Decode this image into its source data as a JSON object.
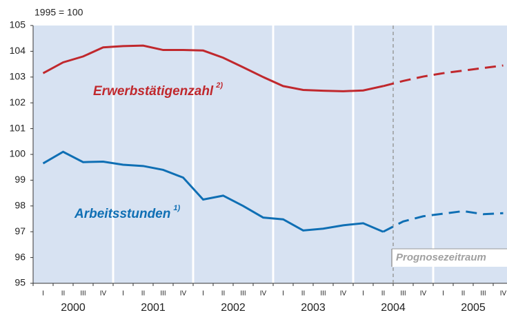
{
  "chart_data": {
    "type": "line",
    "ylabel": "1995 = 100",
    "categories": [
      "I",
      "II",
      "III",
      "IV",
      "I",
      "II",
      "III",
      "IV",
      "I",
      "II",
      "III",
      "IV",
      "I",
      "II",
      "III",
      "IV",
      "I",
      "II",
      "III",
      "IV",
      "I",
      "II",
      "III",
      "IV"
    ],
    "groups": [
      "2000",
      "2001",
      "2002",
      "2003",
      "2004",
      "2005"
    ],
    "ylim": [
      95,
      105
    ],
    "yticks": [
      95,
      96,
      97,
      98,
      99,
      100,
      101,
      102,
      103,
      104,
      105
    ],
    "series": [
      {
        "color": "#c0282d",
        "style": "solid",
        "values": [
          103.15,
          103.57,
          103.8,
          104.15,
          104.2,
          104.22,
          104.05,
          104.05,
          104.03,
          103.75,
          103.38,
          103.0,
          102.65,
          102.5,
          102.47,
          102.45,
          102.48,
          102.65,
          null,
          null,
          null,
          null,
          null,
          null
        ]
      },
      {
        "color": "#c0282d",
        "style": "dashed",
        "values": [
          null,
          null,
          null,
          null,
          null,
          null,
          null,
          null,
          null,
          null,
          null,
          null,
          null,
          null,
          null,
          null,
          null,
          102.65,
          102.85,
          103.02,
          103.15,
          103.25,
          103.35,
          103.45
        ]
      },
      {
        "color": "#0f6fb4",
        "style": "solid",
        "values": [
          99.65,
          100.1,
          99.7,
          99.72,
          99.6,
          99.55,
          99.4,
          99.1,
          98.25,
          98.4,
          98.0,
          97.55,
          97.48,
          97.05,
          97.12,
          97.25,
          97.33,
          97.0,
          null,
          null,
          null,
          null,
          null,
          null
        ]
      },
      {
        "color": "#0f6fb4",
        "style": "dashed",
        "values": [
          null,
          null,
          null,
          null,
          null,
          null,
          null,
          null,
          null,
          null,
          null,
          null,
          null,
          null,
          null,
          null,
          null,
          97.0,
          97.4,
          97.6,
          97.7,
          97.8,
          97.68,
          97.72
        ]
      }
    ],
    "annotations": [
      {
        "text": "Erwerbstätigenzahl",
        "note": "2)",
        "color": "#c0282d"
      },
      {
        "text": "Arbeitsstunden",
        "note": "1)",
        "color": "#0f6fb4"
      },
      {
        "text": "Prognosezeitraum",
        "color": "#a0a0a0"
      }
    ],
    "background": "#d7e2f2"
  }
}
